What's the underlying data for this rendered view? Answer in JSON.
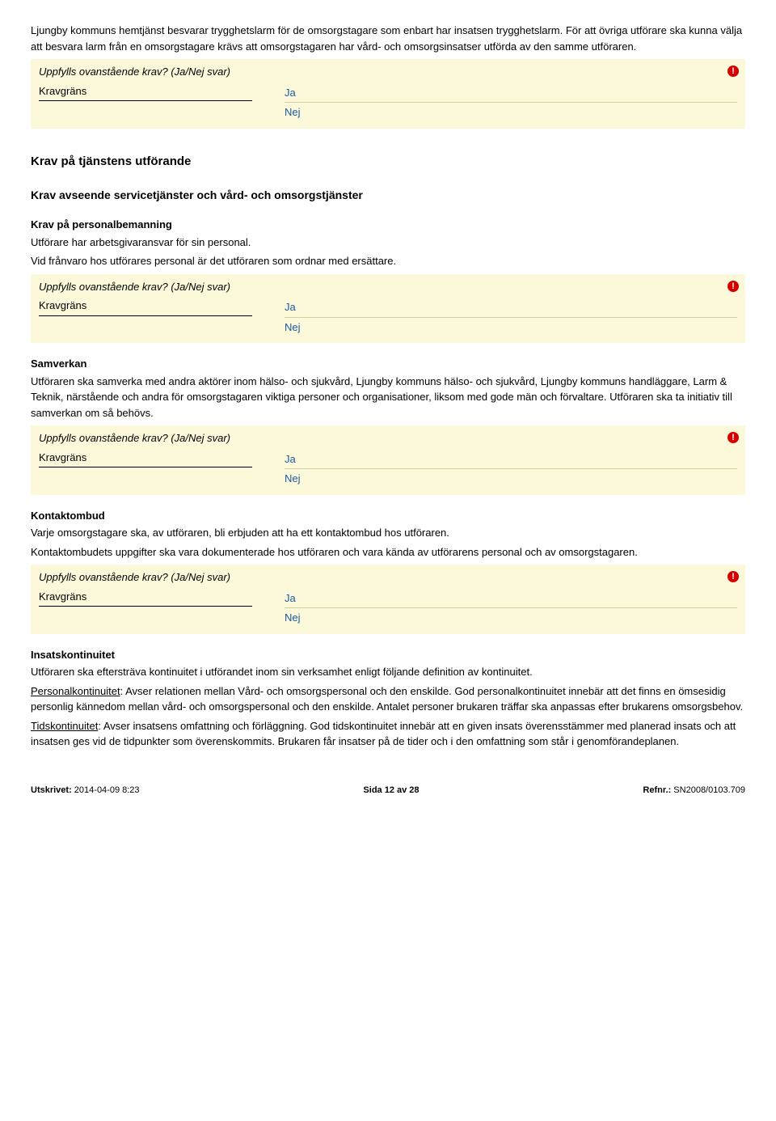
{
  "intro": {
    "p1": "Ljungby kommuns hemtjänst besvarar trygghetslarm för de omsorgstagare som enbart har insatsen trygghetslarm. För att övriga utförare ska kunna välja att besvara larm från en omsorgstagare krävs att omsorgstagaren har vård- och omsorgsinsatser utförda av den samme utföraren."
  },
  "question": {
    "text": "Uppfylls ovanstående krav? (Ja/Nej svar)",
    "kravLabel": "Kravgräns",
    "yes": "Ja",
    "no": "Nej",
    "warn": "!"
  },
  "h1a": "Krav på tjänstens utförande",
  "h2a": "Krav avseende servicetjänster och vård- och omsorgstjänster",
  "sec_personal": {
    "heading": "Krav på personalbemanning",
    "p1": "Utförare har arbetsgivaransvar för sin personal.",
    "p2": "Vid frånvaro hos utförares personal är det utföraren som ordnar med ersättare."
  },
  "sec_samverkan": {
    "heading": "Samverkan",
    "p1": "Utföraren ska samverka med andra aktörer inom hälso- och sjukvård, Ljungby kommuns hälso- och sjukvård, Ljungby kommuns handläggare, Larm & Teknik, närstående och andra för omsorgstagaren viktiga personer och organisationer, liksom med gode män och förvaltare. Utföraren ska ta initiativ till samverkan om så behövs."
  },
  "sec_kontakt": {
    "heading": "Kontaktombud",
    "p1": "Varje omsorgstagare ska, av utföraren, bli erbjuden att ha ett kontaktombud hos utföraren.",
    "p2": "Kontaktombudets uppgifter ska vara dokumenterade hos utföraren och vara kända av utförarens personal och av omsorgstagaren."
  },
  "sec_insats": {
    "heading": "Insatskontinuitet",
    "p1": "Utföraren ska eftersträva kontinuitet i utförandet inom sin verksamhet enligt följande definition av kontinuitet.",
    "p2a_label": "Personalkontinuitet",
    "p2a_rest": ": Avser relationen mellan Vård- och omsorgspersonal och den enskilde. God personalkontinuitet innebär att det finns en ömsesidig personlig kännedom mellan vård- och omsorgspersonal och den enskilde. Antalet personer brukaren träffar ska anpassas efter brukarens omsorgsbehov.",
    "p3a_label": "Tidskontinuitet",
    "p3a_rest": ": Avser insatsens omfattning och förläggning. God tidskontinuitet innebär att en given insats överensstämmer med planerad insats och att insatsen ges vid de tidpunkter som överenskommits. Brukaren får insatser på de tider och i den omfattning som står i genomförandeplanen."
  },
  "footer": {
    "leftLabel": "Utskrivet:",
    "leftValue": " 2014-04-09  8:23",
    "center": "Sida 12 av 28",
    "rightLabel": "Refnr.:",
    "rightValue": " SN2008/0103.709"
  }
}
